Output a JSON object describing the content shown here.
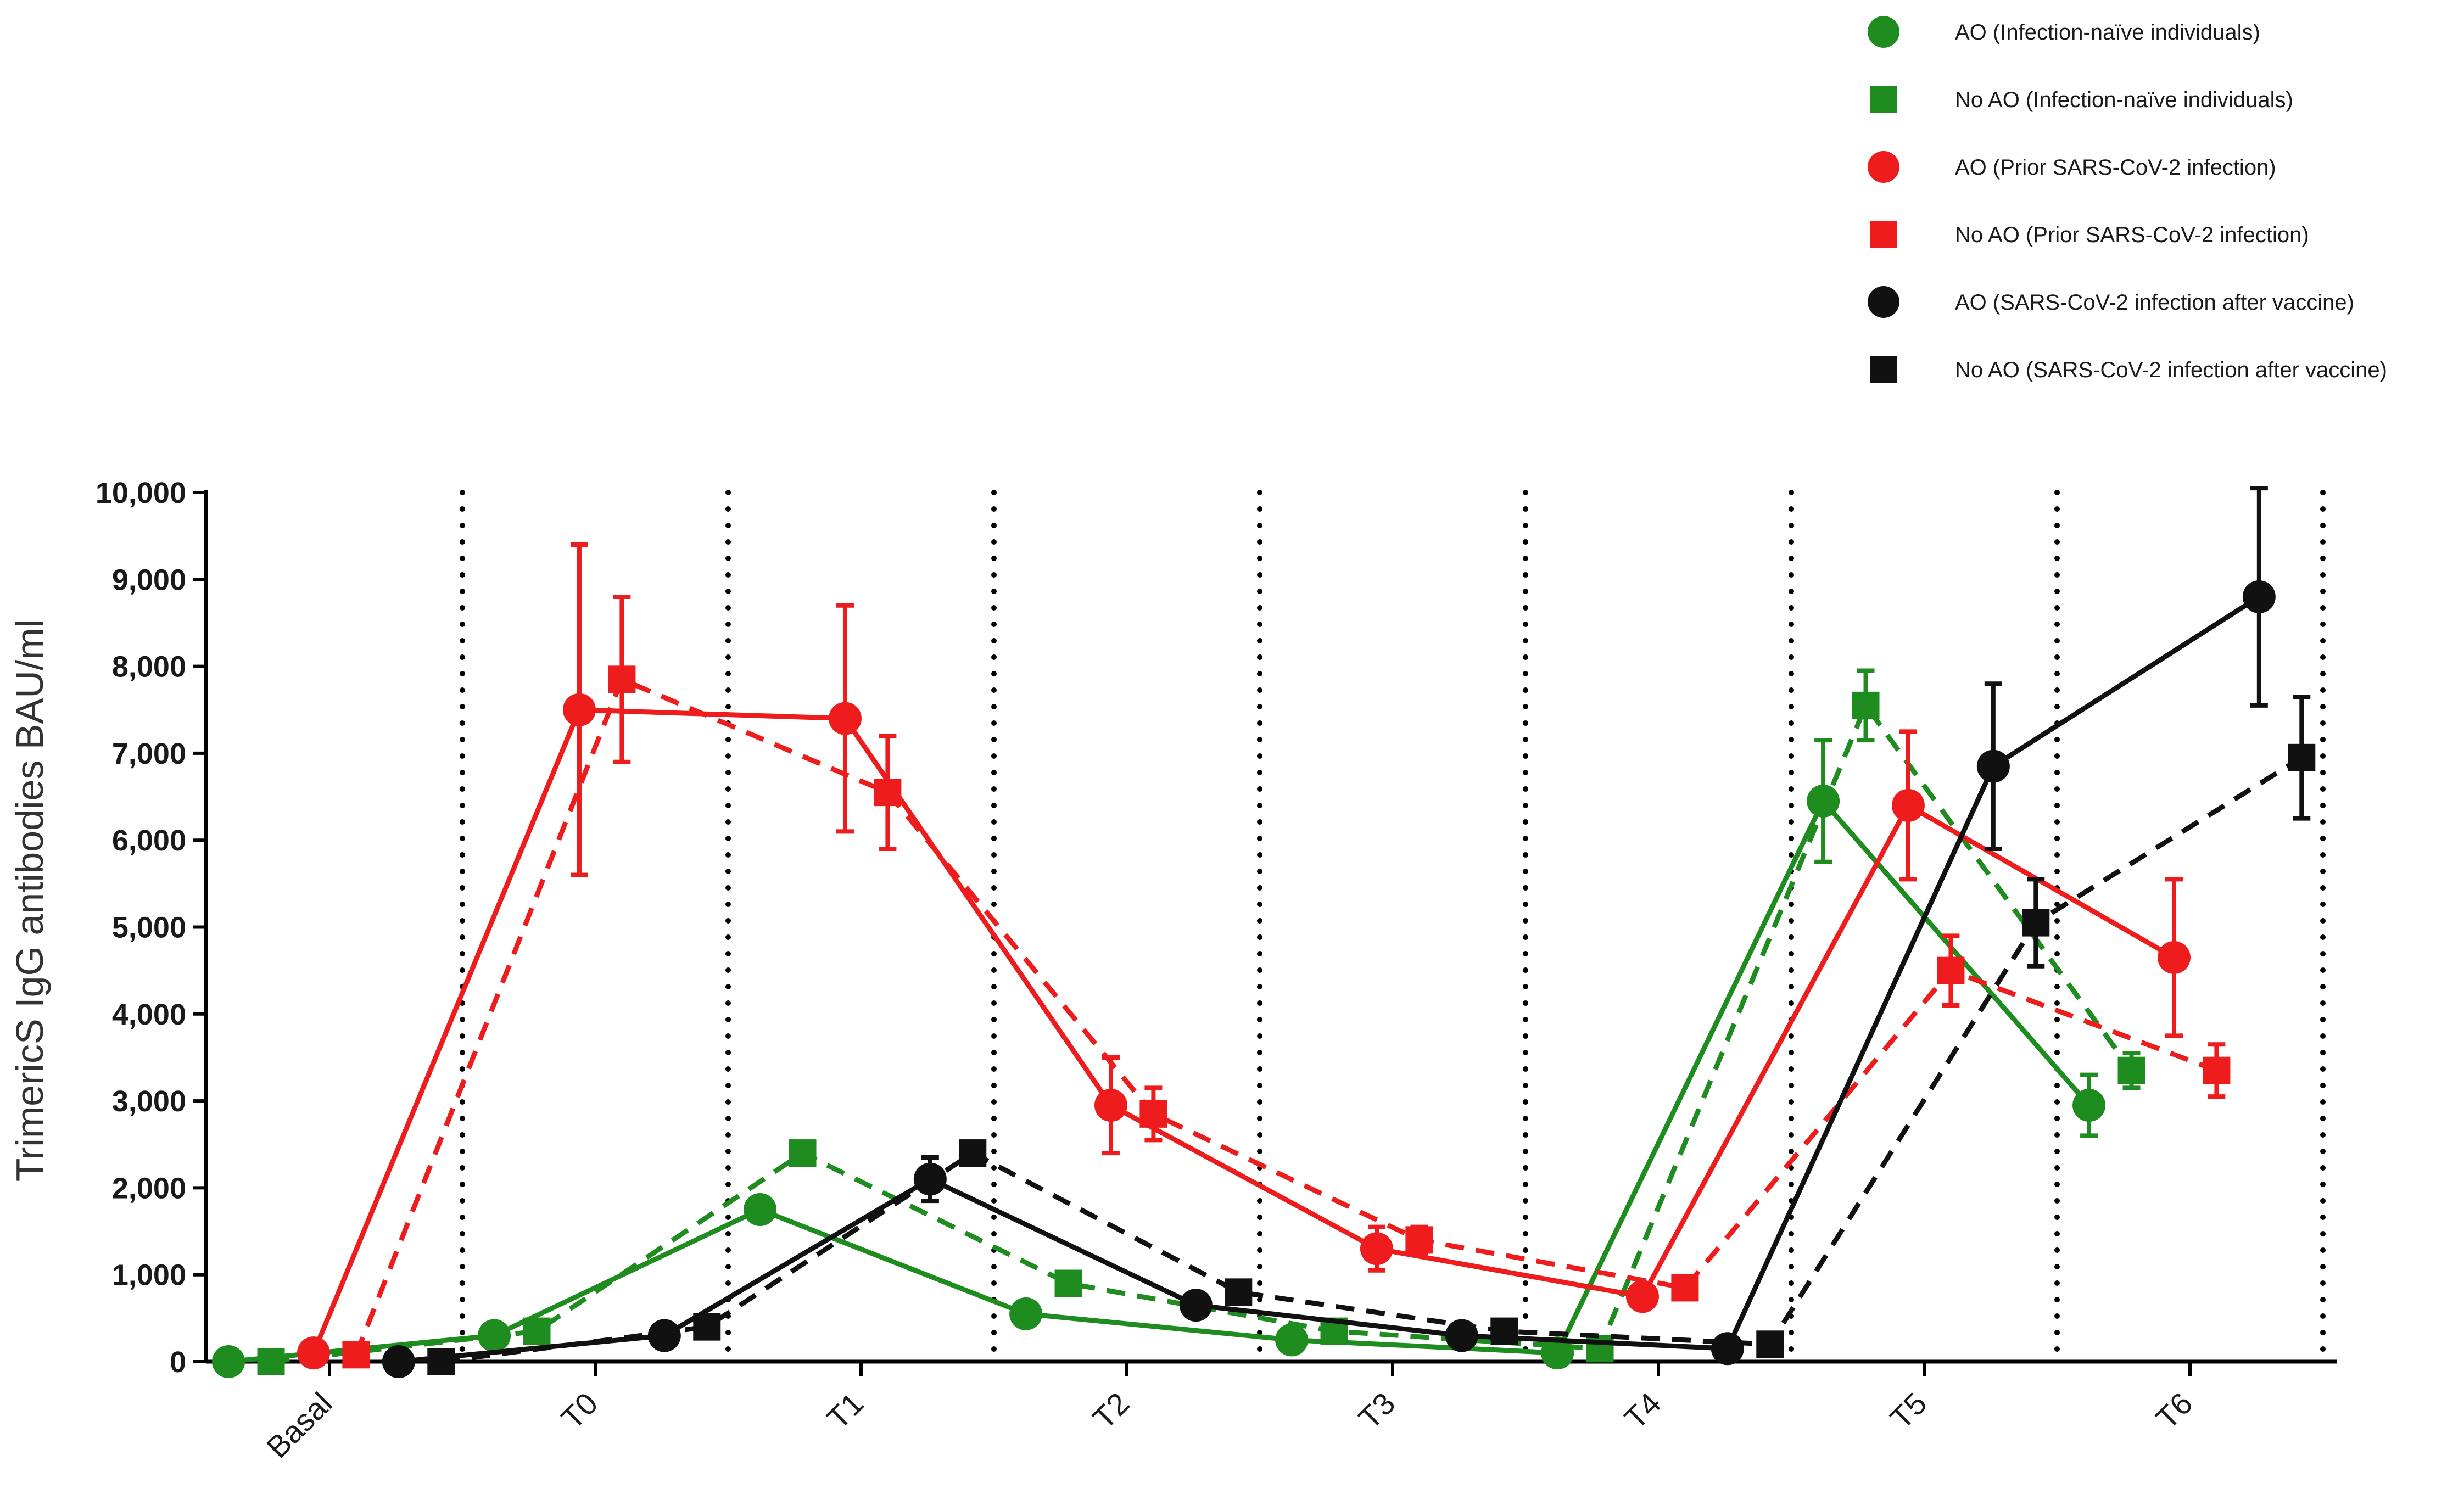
{
  "chart_data": {
    "type": "line",
    "title": "",
    "xlabel": "",
    "ylabel": "TrimericS IgG antibodies BAU/ml",
    "categories": [
      "Basal",
      "T0",
      "T1",
      "T2",
      "T3",
      "T4",
      "T5",
      "T6"
    ],
    "ylim": [
      0,
      10000
    ],
    "yticks": [
      0,
      1000,
      2000,
      3000,
      4000,
      5000,
      6000,
      7000,
      8000,
      9000,
      10000
    ],
    "ytick_labels": [
      "0",
      "1,000",
      "2,000",
      "3,000",
      "4,000",
      "5,000",
      "6,000",
      "7,000",
      "8,000",
      "9,000",
      "10,000"
    ],
    "grid": false,
    "separators": "dotted vertical lines between time points",
    "legend_position": "top-right",
    "series": [
      {
        "name": "AO (Infection-naïve individuals)",
        "color": "#1e8c1e",
        "marker": "circle",
        "line": "solid",
        "offset": -0.38,
        "values": [
          0,
          300,
          1750,
          550,
          250,
          100,
          6450,
          2950
        ],
        "errors": [
          0,
          0,
          0,
          0,
          0,
          0,
          700,
          350
        ]
      },
      {
        "name": "No AO (Infection-naïve individuals)",
        "color": "#1e8c1e",
        "marker": "square",
        "line": "dashed",
        "offset": -0.22,
        "values": [
          0,
          350,
          2400,
          900,
          350,
          150,
          7550,
          3350
        ],
        "errors": [
          0,
          0,
          0,
          0,
          0,
          0,
          400,
          200
        ]
      },
      {
        "name": "AO (Prior SARS-CoV-2 infection)",
        "color": "#ee1c1c",
        "marker": "circle",
        "line": "solid",
        "offset": -0.06,
        "values": [
          100,
          7500,
          7400,
          2950,
          1300,
          750,
          6400,
          4650
        ],
        "errors": [
          0,
          1900,
          1300,
          550,
          250,
          0,
          850,
          900
        ]
      },
      {
        "name": "No AO  (Prior SARS-CoV-2 infection)",
        "color": "#ee1c1c",
        "marker": "square",
        "line": "dashed",
        "offset": 0.1,
        "values": [
          80,
          7850,
          6550,
          2850,
          1400,
          850,
          4500,
          3350
        ],
        "errors": [
          0,
          950,
          650,
          300,
          150,
          0,
          400,
          300
        ]
      },
      {
        "name": "AO (SARS-CoV-2 infection after vaccine)",
        "color": "#111111",
        "marker": "circle",
        "line": "solid",
        "offset": 0.26,
        "values": [
          0,
          300,
          2100,
          650,
          300,
          150,
          6850,
          8800
        ],
        "errors": [
          0,
          0,
          250,
          0,
          0,
          0,
          950,
          1250
        ]
      },
      {
        "name": "No AO (SARS-CoV-2 infection after vaccine)",
        "color": "#111111",
        "marker": "square",
        "line": "dashed",
        "offset": 0.42,
        "values": [
          0,
          400,
          2400,
          800,
          350,
          200,
          5050,
          6950
        ],
        "errors": [
          0,
          0,
          100,
          0,
          0,
          0,
          500,
          700
        ]
      }
    ]
  }
}
